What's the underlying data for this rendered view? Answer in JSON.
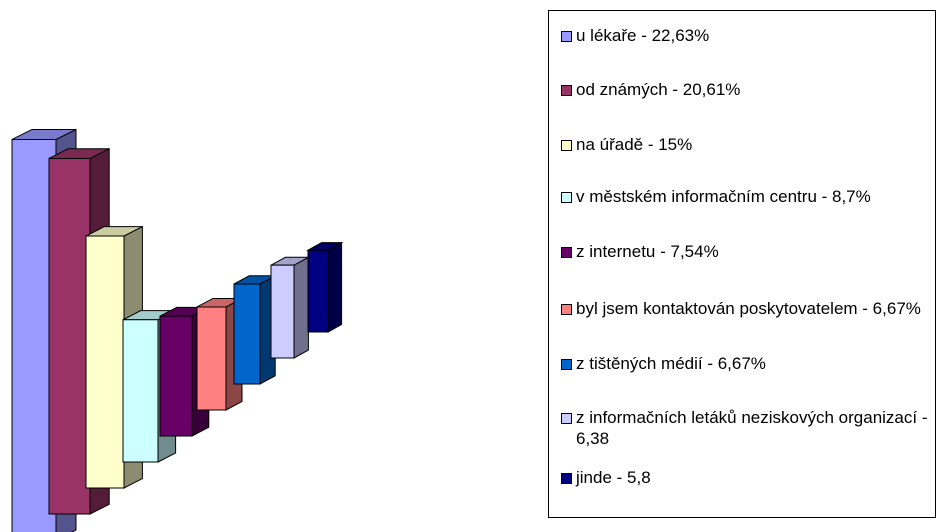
{
  "chart_data": {
    "type": "bar3d",
    "categories": [
      "u lékaře - 22,63%",
      "od známých - 20,61%",
      "na úřadě - 15%",
      "v městském informačním centru - 8,7%",
      "z internetu - 7,54%",
      "byl jsem kontaktován poskytovatelem - 6,67%",
      "z tištěných médií - 6,67%",
      "z informačních letáků neziskových organizací - 6,38",
      "jinde - 5,8"
    ],
    "values": [
      22.63,
      20.61,
      15,
      8.7,
      7.54,
      6.67,
      6.67,
      6.38,
      5.8
    ],
    "colors": [
      "#9999ff",
      "#993366",
      "#ffffcc",
      "#ccffff",
      "#660066",
      "#ff8080",
      "#0066cc",
      "#ccccff",
      "#000080"
    ],
    "legend": "right"
  }
}
